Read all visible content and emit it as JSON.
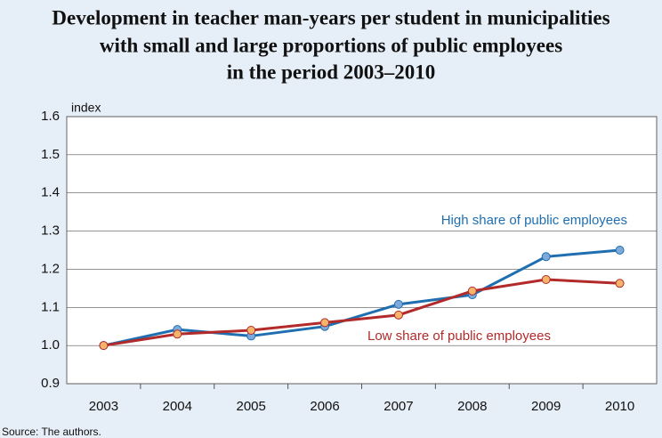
{
  "chart_data": {
    "type": "line",
    "title": [
      "Development in teacher man-years per student in municipalities",
      "with small and large proportions of public employees",
      "in the period 2003–2010"
    ],
    "ylabel": "index",
    "source": "Source: The authors.",
    "categories": [
      "2003",
      "2004",
      "2005",
      "2006",
      "2007",
      "2008",
      "2009",
      "2010"
    ],
    "series": [
      {
        "name": "High share of public employees",
        "color": "#1f6fb0",
        "marker_color": "#7eaadb",
        "values": [
          1.0,
          1.042,
          1.025,
          1.05,
          1.108,
          1.133,
          1.233,
          1.25
        ]
      },
      {
        "name": "Low share of public employees",
        "color": "#b22a2a",
        "marker_color": "#f6b46a",
        "values": [
          1.0,
          1.03,
          1.04,
          1.06,
          1.08,
          1.143,
          1.173,
          1.163
        ]
      }
    ],
    "ylim": [
      0.9,
      1.6
    ],
    "yticks": [
      0.9,
      {
        "value": 1,
        "label": "1.0"
      },
      1.1,
      1.2,
      1.3,
      1.4,
      1.5,
      1.6
    ],
    "grid": true
  }
}
